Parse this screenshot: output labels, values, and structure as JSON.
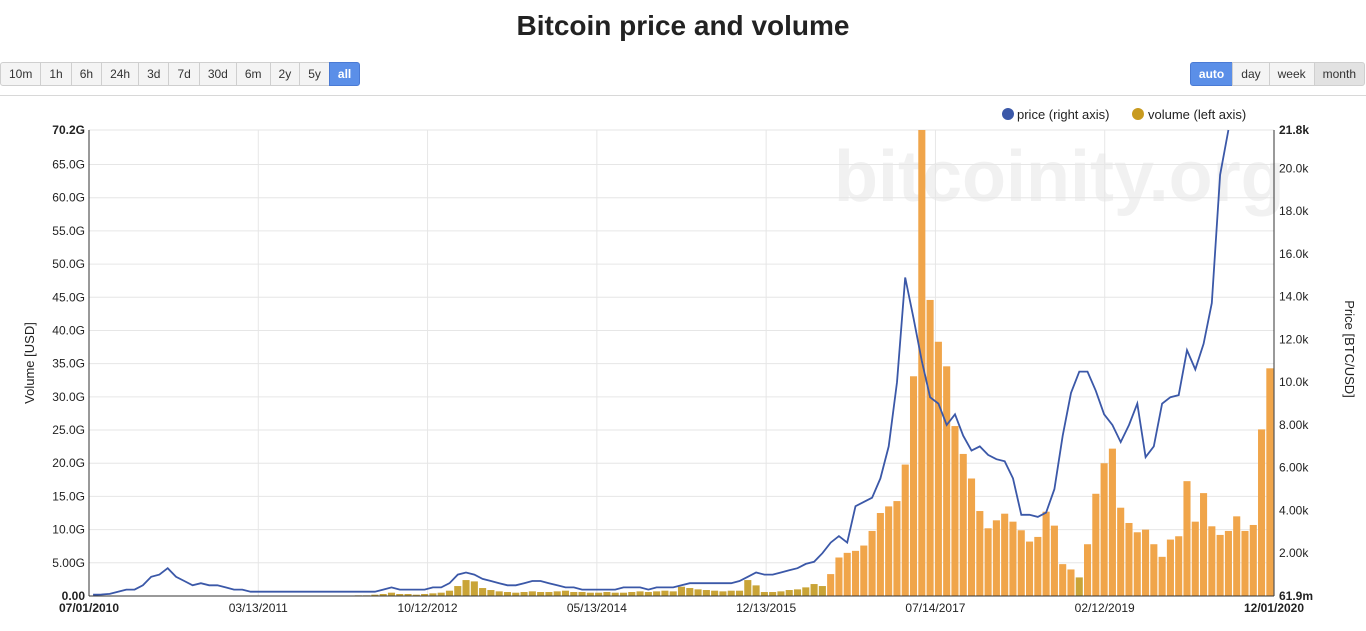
{
  "title": "Bitcoin price and volume",
  "range_buttons": [
    "10m",
    "1h",
    "6h",
    "24h",
    "3d",
    "7d",
    "30d",
    "6m",
    "2y",
    "5y",
    "all"
  ],
  "range_active": "all",
  "resolution_buttons": [
    "auto",
    "day",
    "week",
    "month"
  ],
  "resolution_active": "auto",
  "resolution_pressed": "month",
  "watermark": "bitcoinity.org",
  "colors": {
    "price": "#3b58a8",
    "volume_fill": "#f0a54a",
    "volume_early": "#c9a437",
    "active_button": "#5b8fe8"
  },
  "chart_data": {
    "type": "bar+line",
    "title": "Bitcoin price and volume",
    "legend": [
      {
        "label": "price (right axis)",
        "color": "#3b58a8"
      },
      {
        "label": "volume (left axis)",
        "color": "#c89a1f"
      }
    ],
    "legend_position": "top-right",
    "ylabel_left": "Volume [USD]",
    "ylabel_right": "Price [BTC/USD]",
    "y_left_ticks": [
      "0.00",
      "5.00G",
      "10.0G",
      "15.0G",
      "20.0G",
      "25.0G",
      "30.0G",
      "35.0G",
      "40.0G",
      "45.0G",
      "50.0G",
      "55.0G",
      "60.0G",
      "65.0G",
      "70.2G"
    ],
    "y_left_lim": [
      0,
      70.2
    ],
    "y_right_ticks": [
      "61.9m",
      "2.00k",
      "4.00k",
      "6.00k",
      "8.00k",
      "10.0k",
      "12.0k",
      "14.0k",
      "16.0k",
      "18.0k",
      "20.0k",
      "21.8k"
    ],
    "y_right_lim": [
      0,
      21.8
    ],
    "x_ticks": [
      "07/01/2010",
      "03/13/2011",
      "10/12/2012",
      "05/13/2014",
      "12/13/2015",
      "07/14/2017",
      "02/12/2019",
      "12/01/2020"
    ],
    "x_range": [
      "07/01/2010",
      "12/01/2020"
    ],
    "grid": true,
    "volume_G": [
      0,
      0,
      0,
      0,
      0,
      0,
      0,
      0,
      0,
      0,
      0,
      0,
      0,
      0,
      0,
      0,
      0,
      0,
      0,
      0,
      0,
      0,
      0,
      0,
      0,
      0,
      0,
      0,
      0,
      0,
      0,
      0,
      0.1,
      0.1,
      0.2,
      0.3,
      0.5,
      0.3,
      0.3,
      0.2,
      0.3,
      0.4,
      0.5,
      0.8,
      1.5,
      2.4,
      2.2,
      1.2,
      0.9,
      0.7,
      0.6,
      0.5,
      0.6,
      0.7,
      0.6,
      0.6,
      0.7,
      0.8,
      0.6,
      0.6,
      0.5,
      0.5,
      0.6,
      0.5,
      0.5,
      0.6,
      0.7,
      0.6,
      0.7,
      0.8,
      0.7,
      1.4,
      1.2,
      1.0,
      0.9,
      0.8,
      0.7,
      0.8,
      0.8,
      2.4,
      1.6,
      0.6,
      0.6,
      0.7,
      0.9,
      1.0,
      1.3,
      1.8,
      1.5,
      3.3,
      5.8,
      6.5,
      6.8,
      7.6,
      9.8,
      12.5,
      13.5,
      14.3,
      19.8,
      33.1,
      70.2,
      44.6,
      38.3,
      34.6,
      25.6,
      21.4,
      17.7,
      12.8,
      10.2,
      11.4,
      12.4,
      11.2,
      9.9,
      8.2,
      8.9,
      12.7,
      10.6,
      4.8,
      4.0,
      2.8,
      7.8,
      15.4,
      20.0,
      22.2,
      13.3,
      11.0,
      9.6,
      10.0,
      7.8,
      5.9,
      8.5,
      9.0,
      17.3,
      11.2,
      15.5,
      10.5,
      9.2,
      9.8,
      12.0,
      9.8,
      10.7,
      25.1,
      34.3
    ],
    "price_k": [
      0.06,
      0.07,
      0.1,
      0.2,
      0.3,
      0.3,
      0.5,
      0.9,
      1.0,
      1.3,
      0.9,
      0.7,
      0.5,
      0.6,
      0.5,
      0.5,
      0.4,
      0.3,
      0.3,
      0.2,
      0.2,
      0.2,
      0.2,
      0.2,
      0.2,
      0.2,
      0.2,
      0.2,
      0.2,
      0.2,
      0.2,
      0.2,
      0.2,
      0.2,
      0.2,
      0.3,
      0.4,
      0.3,
      0.3,
      0.3,
      0.3,
      0.4,
      0.4,
      0.6,
      1.0,
      1.1,
      1.0,
      0.8,
      0.7,
      0.6,
      0.5,
      0.5,
      0.6,
      0.7,
      0.7,
      0.6,
      0.5,
      0.4,
      0.4,
      0.3,
      0.3,
      0.3,
      0.3,
      0.3,
      0.4,
      0.4,
      0.4,
      0.3,
      0.4,
      0.4,
      0.4,
      0.5,
      0.6,
      0.6,
      0.6,
      0.6,
      0.6,
      0.6,
      0.7,
      0.9,
      1.1,
      1.0,
      1.0,
      1.1,
      1.2,
      1.3,
      1.5,
      1.6,
      2.0,
      2.5,
      2.8,
      2.5,
      4.2,
      4.4,
      4.6,
      5.5,
      7.0,
      10.0,
      14.9,
      13.0,
      11.0,
      9.3,
      9.0,
      8.0,
      8.5,
      7.5,
      6.8,
      7.0,
      6.6,
      6.4,
      6.3,
      5.5,
      3.8,
      3.8,
      3.7,
      3.9,
      5.0,
      7.5,
      9.5,
      10.5,
      10.5,
      9.6,
      8.5,
      8.0,
      7.2,
      8.0,
      9.0,
      6.5,
      7.0,
      9.0,
      9.3,
      9.4,
      11.5,
      10.6,
      11.8,
      13.7,
      19.7,
      21.8
    ]
  }
}
